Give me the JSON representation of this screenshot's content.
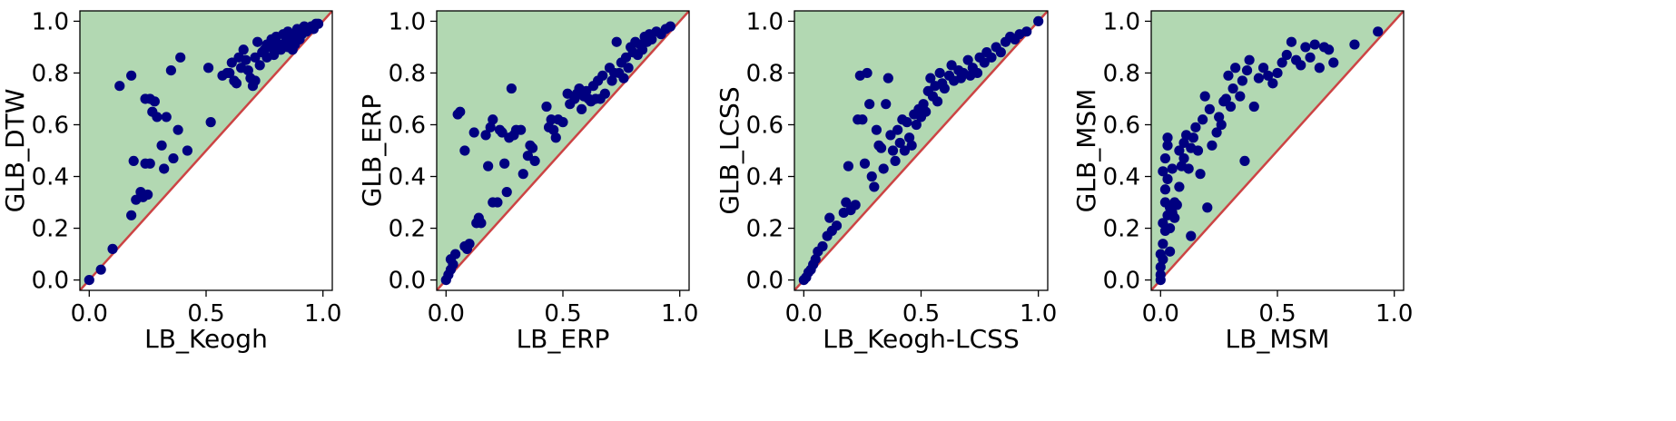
{
  "colors": {
    "region_fill": "#b2d8b2",
    "diagonal": "#cc4444",
    "points": "#000080",
    "frame": "#000000"
  },
  "chart_data": [
    {
      "type": "scatter",
      "xlabel": "LB_Keogh",
      "ylabel": "GLB_DTW",
      "xlim": [
        -0.04,
        1.04
      ],
      "ylim": [
        -0.04,
        1.04
      ],
      "xticks": [
        "0.0",
        "0.5",
        "1.0"
      ],
      "yticks": [
        "0.0",
        "0.2",
        "0.4",
        "0.6",
        "0.8",
        "1.0"
      ],
      "xtick_values": [
        0,
        0.5,
        1
      ],
      "ytick_values": [
        0,
        0.2,
        0.4,
        0.6,
        0.8,
        1
      ],
      "shaded_region": "y >= x",
      "diagonal": "y = x",
      "grid": false,
      "points": [
        [
          0.0,
          0.0
        ],
        [
          0.05,
          0.04
        ],
        [
          0.1,
          0.12
        ],
        [
          0.13,
          0.75
        ],
        [
          0.18,
          0.79
        ],
        [
          0.18,
          0.25
        ],
        [
          0.19,
          0.46
        ],
        [
          0.2,
          0.31
        ],
        [
          0.22,
          0.34
        ],
        [
          0.23,
          0.32
        ],
        [
          0.24,
          0.7
        ],
        [
          0.24,
          0.45
        ],
        [
          0.25,
          0.33
        ],
        [
          0.26,
          0.45
        ],
        [
          0.26,
          0.7
        ],
        [
          0.27,
          0.65
        ],
        [
          0.28,
          0.69
        ],
        [
          0.29,
          0.63
        ],
        [
          0.31,
          0.52
        ],
        [
          0.32,
          0.43
        ],
        [
          0.33,
          0.63
        ],
        [
          0.35,
          0.81
        ],
        [
          0.36,
          0.47
        ],
        [
          0.38,
          0.58
        ],
        [
          0.39,
          0.86
        ],
        [
          0.42,
          0.5
        ],
        [
          0.51,
          0.82
        ],
        [
          0.52,
          0.61
        ],
        [
          0.57,
          0.79
        ],
        [
          0.59,
          0.8
        ],
        [
          0.6,
          0.8
        ],
        [
          0.61,
          0.84
        ],
        [
          0.62,
          0.77
        ],
        [
          0.63,
          0.76
        ],
        [
          0.64,
          0.86
        ],
        [
          0.65,
          0.82
        ],
        [
          0.66,
          0.89
        ],
        [
          0.67,
          0.85
        ],
        [
          0.68,
          0.81
        ],
        [
          0.69,
          0.78
        ],
        [
          0.7,
          0.75
        ],
        [
          0.71,
          0.77
        ],
        [
          0.71,
          0.86
        ],
        [
          0.72,
          0.92
        ],
        [
          0.73,
          0.83
        ],
        [
          0.74,
          0.88
        ],
        [
          0.75,
          0.89
        ],
        [
          0.76,
          0.86
        ],
        [
          0.76,
          0.91
        ],
        [
          0.77,
          0.9
        ],
        [
          0.78,
          0.93
        ],
        [
          0.79,
          0.87
        ],
        [
          0.8,
          0.9
        ],
        [
          0.8,
          0.94
        ],
        [
          0.81,
          0.91
        ],
        [
          0.82,
          0.89
        ],
        [
          0.83,
          0.95
        ],
        [
          0.84,
          0.92
        ],
        [
          0.85,
          0.9
        ],
        [
          0.85,
          0.96
        ],
        [
          0.86,
          0.93
        ],
        [
          0.87,
          0.89
        ],
        [
          0.88,
          0.95
        ],
        [
          0.88,
          0.91
        ],
        [
          0.89,
          0.97
        ],
        [
          0.9,
          0.93
        ],
        [
          0.91,
          0.95
        ],
        [
          0.92,
          0.98
        ],
        [
          0.93,
          0.96
        ],
        [
          0.94,
          0.97
        ],
        [
          0.95,
          0.98
        ],
        [
          0.96,
          0.97
        ],
        [
          0.97,
          0.99
        ],
        [
          0.98,
          0.99
        ]
      ]
    },
    {
      "type": "scatter",
      "xlabel": "LB_ERP",
      "ylabel": "GLB_ERP",
      "xlim": [
        -0.04,
        1.04
      ],
      "ylim": [
        -0.04,
        1.04
      ],
      "xticks": [
        "0.0",
        "0.5",
        "1.0"
      ],
      "yticks": [
        "0.0",
        "0.2",
        "0.4",
        "0.6",
        "0.8",
        "1.0"
      ],
      "xtick_values": [
        0,
        0.5,
        1
      ],
      "ytick_values": [
        0,
        0.2,
        0.4,
        0.6,
        0.8,
        1
      ],
      "shaded_region": "y >= x",
      "diagonal": "y = x",
      "grid": false,
      "points": [
        [
          0.0,
          0.0
        ],
        [
          0.01,
          0.02
        ],
        [
          0.02,
          0.04
        ],
        [
          0.02,
          0.08
        ],
        [
          0.03,
          0.06
        ],
        [
          0.04,
          0.1
        ],
        [
          0.05,
          0.64
        ],
        [
          0.06,
          0.65
        ],
        [
          0.08,
          0.5
        ],
        [
          0.08,
          0.13
        ],
        [
          0.09,
          0.12
        ],
        [
          0.1,
          0.14
        ],
        [
          0.12,
          0.57
        ],
        [
          0.13,
          0.22
        ],
        [
          0.14,
          0.24
        ],
        [
          0.15,
          0.22
        ],
        [
          0.17,
          0.56
        ],
        [
          0.18,
          0.44
        ],
        [
          0.19,
          0.59
        ],
        [
          0.2,
          0.62
        ],
        [
          0.2,
          0.3
        ],
        [
          0.22,
          0.3
        ],
        [
          0.23,
          0.58
        ],
        [
          0.24,
          0.57
        ],
        [
          0.25,
          0.45
        ],
        [
          0.26,
          0.34
        ],
        [
          0.27,
          0.55
        ],
        [
          0.28,
          0.74
        ],
        [
          0.29,
          0.56
        ],
        [
          0.3,
          0.58
        ],
        [
          0.32,
          0.58
        ],
        [
          0.33,
          0.41
        ],
        [
          0.35,
          0.48
        ],
        [
          0.36,
          0.52
        ],
        [
          0.37,
          0.51
        ],
        [
          0.38,
          0.46
        ],
        [
          0.43,
          0.67
        ],
        [
          0.44,
          0.59
        ],
        [
          0.45,
          0.62
        ],
        [
          0.46,
          0.58
        ],
        [
          0.47,
          0.55
        ],
        [
          0.48,
          0.62
        ],
        [
          0.5,
          0.61
        ],
        [
          0.52,
          0.72
        ],
        [
          0.53,
          0.68
        ],
        [
          0.55,
          0.7
        ],
        [
          0.56,
          0.72
        ],
        [
          0.57,
          0.74
        ],
        [
          0.58,
          0.66
        ],
        [
          0.59,
          0.71
        ],
        [
          0.6,
          0.73
        ],
        [
          0.61,
          0.7
        ],
        [
          0.62,
          0.69
        ],
        [
          0.63,
          0.75
        ],
        [
          0.64,
          0.7
        ],
        [
          0.65,
          0.77
        ],
        [
          0.66,
          0.7
        ],
        [
          0.67,
          0.79
        ],
        [
          0.68,
          0.72
        ],
        [
          0.7,
          0.82
        ],
        [
          0.71,
          0.77
        ],
        [
          0.72,
          0.8
        ],
        [
          0.73,
          0.92
        ],
        [
          0.74,
          0.8
        ],
        [
          0.75,
          0.84
        ],
        [
          0.76,
          0.78
        ],
        [
          0.77,
          0.86
        ],
        [
          0.78,
          0.82
        ],
        [
          0.79,
          0.9
        ],
        [
          0.8,
          0.88
        ],
        [
          0.81,
          0.92
        ],
        [
          0.82,
          0.87
        ],
        [
          0.83,
          0.91
        ],
        [
          0.84,
          0.89
        ],
        [
          0.85,
          0.94
        ],
        [
          0.86,
          0.92
        ],
        [
          0.87,
          0.95
        ],
        [
          0.88,
          0.93
        ],
        [
          0.9,
          0.96
        ],
        [
          0.92,
          0.95
        ],
        [
          0.94,
          0.97
        ],
        [
          0.96,
          0.98
        ]
      ]
    },
    {
      "type": "scatter",
      "xlabel": "LB_Keogh-LCSS",
      "ylabel": "GLB_LCSS",
      "xlim": [
        -0.04,
        1.04
      ],
      "ylim": [
        -0.04,
        1.04
      ],
      "xticks": [
        "0.0",
        "0.5",
        "1.0"
      ],
      "yticks": [
        "0.0",
        "0.2",
        "0.4",
        "0.6",
        "0.8",
        "1.0"
      ],
      "xtick_values": [
        0,
        0.5,
        1
      ],
      "ytick_values": [
        0,
        0.2,
        0.4,
        0.6,
        0.8,
        1
      ],
      "shaded_region": "y >= x",
      "diagonal": "y = x",
      "grid": false,
      "points": [
        [
          0.0,
          0.0
        ],
        [
          0.01,
          0.01
        ],
        [
          0.02,
          0.03
        ],
        [
          0.03,
          0.04
        ],
        [
          0.04,
          0.06
        ],
        [
          0.05,
          0.08
        ],
        [
          0.06,
          0.11
        ],
        [
          0.08,
          0.13
        ],
        [
          0.1,
          0.17
        ],
        [
          0.11,
          0.24
        ],
        [
          0.12,
          0.19
        ],
        [
          0.14,
          0.21
        ],
        [
          0.17,
          0.26
        ],
        [
          0.18,
          0.3
        ],
        [
          0.19,
          0.44
        ],
        [
          0.2,
          0.27
        ],
        [
          0.22,
          0.29
        ],
        [
          0.23,
          0.62
        ],
        [
          0.24,
          0.79
        ],
        [
          0.25,
          0.62
        ],
        [
          0.26,
          0.45
        ],
        [
          0.27,
          0.8
        ],
        [
          0.28,
          0.68
        ],
        [
          0.29,
          0.4
        ],
        [
          0.3,
          0.36
        ],
        [
          0.31,
          0.58
        ],
        [
          0.32,
          0.52
        ],
        [
          0.33,
          0.51
        ],
        [
          0.34,
          0.43
        ],
        [
          0.35,
          0.68
        ],
        [
          0.36,
          0.78
        ],
        [
          0.37,
          0.56
        ],
        [
          0.38,
          0.5
        ],
        [
          0.39,
          0.46
        ],
        [
          0.4,
          0.58
        ],
        [
          0.41,
          0.53
        ],
        [
          0.42,
          0.62
        ],
        [
          0.43,
          0.5
        ],
        [
          0.44,
          0.61
        ],
        [
          0.45,
          0.55
        ],
        [
          0.46,
          0.52
        ],
        [
          0.47,
          0.64
        ],
        [
          0.48,
          0.6
        ],
        [
          0.49,
          0.66
        ],
        [
          0.5,
          0.63
        ],
        [
          0.51,
          0.68
        ],
        [
          0.52,
          0.65
        ],
        [
          0.53,
          0.73
        ],
        [
          0.54,
          0.78
        ],
        [
          0.55,
          0.71
        ],
        [
          0.56,
          0.75
        ],
        [
          0.57,
          0.69
        ],
        [
          0.58,
          0.8
        ],
        [
          0.59,
          0.76
        ],
        [
          0.6,
          0.74
        ],
        [
          0.62,
          0.79
        ],
        [
          0.63,
          0.83
        ],
        [
          0.64,
          0.77
        ],
        [
          0.66,
          0.81
        ],
        [
          0.67,
          0.78
        ],
        [
          0.68,
          0.8
        ],
        [
          0.7,
          0.85
        ],
        [
          0.71,
          0.79
        ],
        [
          0.72,
          0.82
        ],
        [
          0.74,
          0.8
        ],
        [
          0.75,
          0.86
        ],
        [
          0.77,
          0.84
        ],
        [
          0.78,
          0.88
        ],
        [
          0.8,
          0.86
        ],
        [
          0.82,
          0.9
        ],
        [
          0.84,
          0.88
        ],
        [
          0.86,
          0.92
        ],
        [
          0.88,
          0.94
        ],
        [
          0.9,
          0.93
        ],
        [
          0.92,
          0.95
        ],
        [
          0.95,
          0.96
        ],
        [
          1.0,
          1.0
        ]
      ]
    },
    {
      "type": "scatter",
      "xlabel": "LB_MSM",
      "ylabel": "GLB_MSM",
      "xlim": [
        -0.04,
        1.04
      ],
      "ylim": [
        -0.04,
        1.04
      ],
      "xticks": [
        "0.0",
        "0.5",
        "1.0"
      ],
      "yticks": [
        "0.0",
        "0.2",
        "0.4",
        "0.6",
        "0.8",
        "1.0"
      ],
      "xtick_values": [
        0,
        0.5,
        1
      ],
      "ytick_values": [
        0,
        0.2,
        0.4,
        0.6,
        0.8,
        1
      ],
      "shaded_region": "y >= x",
      "diagonal": "y = x",
      "grid": false,
      "points": [
        [
          0.0,
          0.0
        ],
        [
          0.0,
          0.02
        ],
        [
          0.0,
          0.05
        ],
        [
          0.01,
          0.08
        ],
        [
          0.0,
          0.1
        ],
        [
          0.01,
          0.14
        ],
        [
          0.02,
          0.19
        ],
        [
          0.01,
          0.22
        ],
        [
          0.03,
          0.25
        ],
        [
          0.02,
          0.3
        ],
        [
          0.02,
          0.35
        ],
        [
          0.03,
          0.39
        ],
        [
          0.01,
          0.42
        ],
        [
          0.02,
          0.47
        ],
        [
          0.03,
          0.52
        ],
        [
          0.03,
          0.55
        ],
        [
          0.04,
          0.2
        ],
        [
          0.04,
          0.28
        ],
        [
          0.05,
          0.26
        ],
        [
          0.06,
          0.3
        ],
        [
          0.06,
          0.24
        ],
        [
          0.07,
          0.29
        ],
        [
          0.04,
          0.11
        ],
        [
          0.05,
          0.43
        ],
        [
          0.08,
          0.5
        ],
        [
          0.08,
          0.36
        ],
        [
          0.09,
          0.44
        ],
        [
          0.1,
          0.47
        ],
        [
          0.1,
          0.53
        ],
        [
          0.11,
          0.56
        ],
        [
          0.12,
          0.43
        ],
        [
          0.13,
          0.17
        ],
        [
          0.13,
          0.51
        ],
        [
          0.14,
          0.55
        ],
        [
          0.15,
          0.59
        ],
        [
          0.16,
          0.5
        ],
        [
          0.17,
          0.41
        ],
        [
          0.18,
          0.62
        ],
        [
          0.19,
          0.71
        ],
        [
          0.2,
          0.28
        ],
        [
          0.21,
          0.66
        ],
        [
          0.22,
          0.52
        ],
        [
          0.24,
          0.57
        ],
        [
          0.25,
          0.63
        ],
        [
          0.26,
          0.6
        ],
        [
          0.27,
          0.69
        ],
        [
          0.28,
          0.7
        ],
        [
          0.29,
          0.79
        ],
        [
          0.3,
          0.67
        ],
        [
          0.31,
          0.74
        ],
        [
          0.32,
          0.82
        ],
        [
          0.34,
          0.71
        ],
        [
          0.35,
          0.77
        ],
        [
          0.36,
          0.46
        ],
        [
          0.37,
          0.81
        ],
        [
          0.38,
          0.85
        ],
        [
          0.4,
          0.67
        ],
        [
          0.42,
          0.78
        ],
        [
          0.44,
          0.82
        ],
        [
          0.46,
          0.79
        ],
        [
          0.48,
          0.76
        ],
        [
          0.5,
          0.8
        ],
        [
          0.52,
          0.84
        ],
        [
          0.54,
          0.87
        ],
        [
          0.56,
          0.92
        ],
        [
          0.58,
          0.85
        ],
        [
          0.6,
          0.83
        ],
        [
          0.62,
          0.9
        ],
        [
          0.64,
          0.86
        ],
        [
          0.66,
          0.91
        ],
        [
          0.68,
          0.82
        ],
        [
          0.7,
          0.9
        ],
        [
          0.72,
          0.89
        ],
        [
          0.74,
          0.84
        ],
        [
          0.83,
          0.91
        ],
        [
          0.93,
          0.96
        ]
      ]
    }
  ]
}
